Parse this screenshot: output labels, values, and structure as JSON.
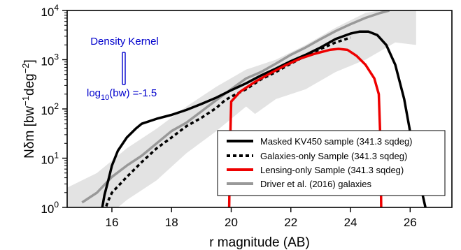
{
  "chart_data": {
    "type": "line",
    "title": "",
    "xlabel": "r magnitude (AB)",
    "ylabel_main": "Nδm [bw",
    "ylabel_sup1": "−1",
    "ylabel_mid": "deg",
    "ylabel_sup2": "−2",
    "ylabel_end": "]",
    "xlim": [
      14.5,
      27.4
    ],
    "ylim": [
      0,
      4
    ],
    "yscale": "log10",
    "x_ticks": [
      16,
      18,
      20,
      22,
      24,
      26
    ],
    "x_tick_labels": [
      "16",
      "18",
      "20",
      "22",
      "24",
      "26"
    ],
    "y_ticks": [
      0,
      1,
      2,
      3,
      4
    ],
    "y_tick_base": "10",
    "y_tick_exponents": [
      "0",
      "1",
      "2",
      "3",
      "4"
    ],
    "grid": false,
    "legend_position": "bottom-right",
    "annotation": {
      "title": "Density Kernel",
      "bw_label": "log",
      "bw_sub": "10",
      "bw_rest": "(bw) =-1.5",
      "color": "#0000cc"
    },
    "band": {
      "color": "#e3e3e3",
      "upper": [
        [
          14.5,
          0.4
        ],
        [
          15.5,
          0.7
        ],
        [
          16.5,
          1.2
        ],
        [
          17.5,
          1.6
        ],
        [
          18.5,
          2.05
        ],
        [
          19.5,
          2.45
        ],
        [
          20.5,
          2.8
        ],
        [
          21.5,
          3.0
        ],
        [
          22.5,
          3.3
        ],
        [
          23.5,
          3.65
        ],
        [
          24.5,
          3.95
        ],
        [
          25.0,
          4.0
        ],
        [
          26.0,
          4.0
        ],
        [
          26.2,
          4.0
        ]
      ],
      "lower": [
        [
          26.2,
          3.3
        ],
        [
          25.5,
          3.35
        ],
        [
          24.5,
          3.0
        ],
        [
          23.5,
          2.75
        ],
        [
          22.5,
          2.4
        ],
        [
          21.5,
          2.2
        ],
        [
          20.8,
          1.9
        ],
        [
          20.5,
          2.05
        ],
        [
          19.5,
          1.55
        ],
        [
          18.5,
          1.1
        ],
        [
          17.5,
          0.55
        ],
        [
          16.5,
          0.15
        ],
        [
          16.0,
          -0.1
        ],
        [
          14.5,
          -0.1
        ]
      ]
    },
    "series": [
      {
        "name": "Masked KV450 sample (341.3 sqdeg)",
        "color": "#000000",
        "dash": "solid",
        "points": [
          [
            15.65,
            -0.1
          ],
          [
            15.75,
            0.25
          ],
          [
            15.9,
            0.6
          ],
          [
            16.0,
            0.85
          ],
          [
            16.2,
            1.15
          ],
          [
            16.5,
            1.42
          ],
          [
            16.8,
            1.6
          ],
          [
            17.0,
            1.7
          ],
          [
            17.5,
            1.8
          ],
          [
            18.0,
            1.88
          ],
          [
            18.5,
            1.98
          ],
          [
            19.0,
            2.1
          ],
          [
            19.5,
            2.23
          ],
          [
            20.0,
            2.38
          ],
          [
            20.5,
            2.52
          ],
          [
            21.0,
            2.68
          ],
          [
            21.5,
            2.82
          ],
          [
            22.0,
            2.97
          ],
          [
            22.5,
            3.1
          ],
          [
            23.0,
            3.25
          ],
          [
            23.5,
            3.42
          ],
          [
            24.0,
            3.53
          ],
          [
            24.3,
            3.57
          ],
          [
            24.6,
            3.57
          ],
          [
            24.9,
            3.5
          ],
          [
            25.2,
            3.3
          ],
          [
            25.5,
            2.9
          ],
          [
            25.8,
            2.2
          ],
          [
            26.1,
            1.2
          ],
          [
            26.4,
            0.3
          ],
          [
            26.55,
            -0.1
          ]
        ]
      },
      {
        "name": "Galaxies-only Sample (341.3 sqdeg)",
        "color": "#000000",
        "dash": "dotted",
        "points": [
          [
            15.75,
            -0.1
          ],
          [
            15.85,
            0.1
          ],
          [
            16.0,
            0.3
          ],
          [
            16.5,
            0.62
          ],
          [
            17.0,
            0.92
          ],
          [
            17.5,
            1.2
          ],
          [
            18.0,
            1.42
          ],
          [
            18.5,
            1.65
          ],
          [
            19.0,
            1.82
          ],
          [
            19.5,
            2.02
          ],
          [
            19.8,
            2.18
          ],
          [
            20.0,
            2.25
          ],
          [
            20.5,
            2.4
          ],
          [
            21.0,
            2.6
          ],
          [
            21.5,
            2.75
          ],
          [
            22.0,
            2.92
          ],
          [
            22.5,
            3.08
          ],
          [
            23.0,
            3.22
          ],
          [
            23.5,
            3.35
          ],
          [
            24.0,
            3.45
          ]
        ]
      },
      {
        "name": "Lensing-only Sample (341.3 sqdeg)",
        "color": "#ee0000",
        "dash": "solid",
        "points": [
          [
            19.93,
            -0.1
          ],
          [
            19.96,
            1.2
          ],
          [
            20.0,
            2.15
          ],
          [
            20.3,
            2.35
          ],
          [
            20.8,
            2.55
          ],
          [
            21.3,
            2.72
          ],
          [
            21.8,
            2.88
          ],
          [
            22.3,
            3.02
          ],
          [
            22.8,
            3.12
          ],
          [
            23.3,
            3.2
          ],
          [
            23.6,
            3.22
          ],
          [
            23.9,
            3.2
          ],
          [
            24.2,
            3.08
          ],
          [
            24.5,
            2.9
          ],
          [
            24.8,
            2.62
          ],
          [
            24.95,
            2.3
          ],
          [
            25.0,
            1.4
          ],
          [
            25.03,
            -0.1
          ]
        ]
      },
      {
        "name": "Driver et al. (2016) galaxies",
        "color": "#999999",
        "dash": "solid",
        "points": [
          [
            15.0,
            0.1
          ],
          [
            15.5,
            0.3
          ],
          [
            16.0,
            0.62
          ],
          [
            16.5,
            0.85
          ],
          [
            17.0,
            1.05
          ],
          [
            17.5,
            1.3
          ],
          [
            18.0,
            1.55
          ],
          [
            18.5,
            1.72
          ],
          [
            19.0,
            1.95
          ],
          [
            19.5,
            2.18
          ],
          [
            20.0,
            2.4
          ],
          [
            20.5,
            2.62
          ],
          [
            21.0,
            2.75
          ],
          [
            21.5,
            2.92
          ],
          [
            22.0,
            3.1
          ],
          [
            22.5,
            3.25
          ],
          [
            23.0,
            3.42
          ],
          [
            23.5,
            3.58
          ],
          [
            24.0,
            3.72
          ],
          [
            24.5,
            3.85
          ],
          [
            25.0,
            3.95
          ],
          [
            25.3,
            4.0
          ]
        ]
      }
    ]
  }
}
